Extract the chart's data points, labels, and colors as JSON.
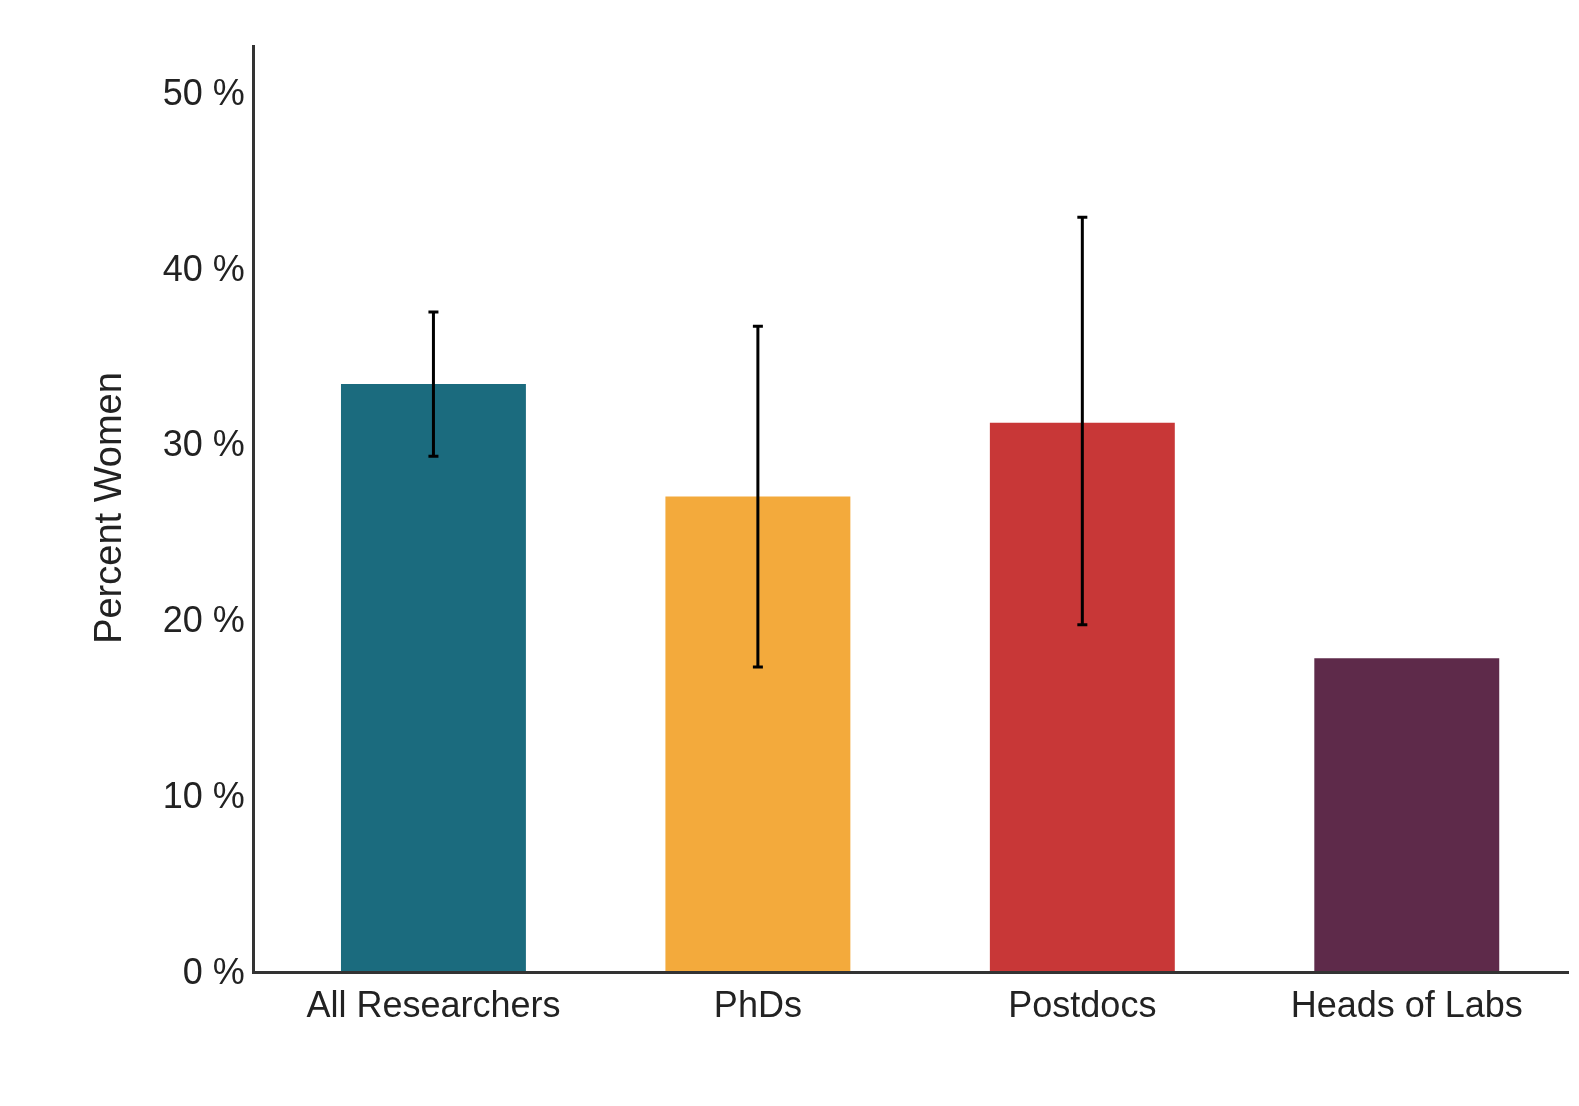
{
  "chart_data": {
    "type": "bar",
    "ylabel": "Percent Women",
    "categories": [
      "All Researchers",
      "PhDs",
      "Postdocs",
      "Heads of Labs"
    ],
    "values": [
      33.4,
      27.0,
      31.2,
      17.8
    ],
    "colors": [
      "#1b6b7e",
      "#f3aa3c",
      "#c83737",
      "#5e2a4a"
    ],
    "errors": [
      [
        29.3,
        37.5
      ],
      [
        17.3,
        36.7
      ],
      [
        19.7,
        42.9
      ],
      null
    ],
    "ylim": [
      0,
      52.7
    ],
    "yticks": [
      {
        "value": 0,
        "label": "0 %"
      },
      {
        "value": 10,
        "label": "10 %"
      },
      {
        "value": 20,
        "label": "20 %"
      },
      {
        "value": 30,
        "label": "30 %"
      },
      {
        "value": 40,
        "label": "40 %"
      },
      {
        "value": 50,
        "label": "50 %"
      }
    ],
    "grid": false
  }
}
